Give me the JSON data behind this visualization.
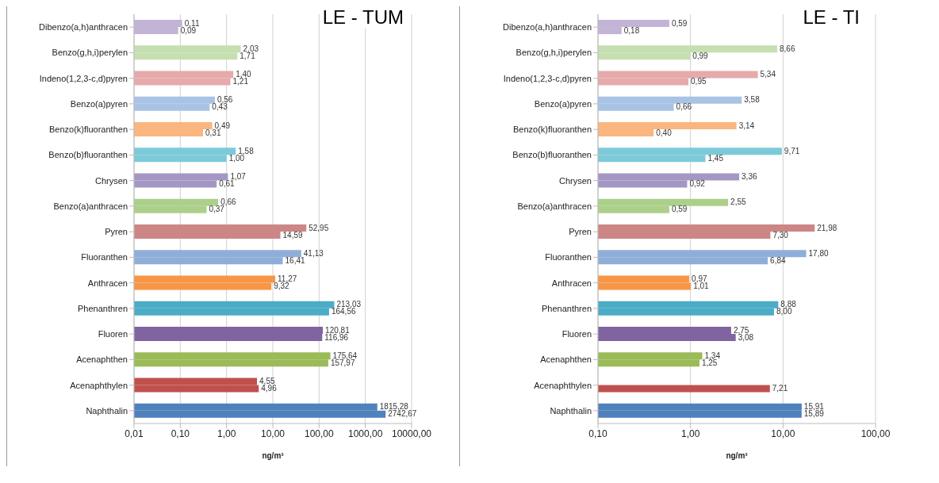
{
  "chart_data": [
    {
      "type": "bar",
      "orientation": "horizontal",
      "title": "LE - TUM",
      "xlabel": "ng/m³",
      "log": "x",
      "grid": "x",
      "legend": false,
      "categories": [
        "Dibenzo(a,h)anthracen",
        "Benzo(g,h,i)perylen",
        "Indeno(1,2,3-c,d)pyren",
        "Benzo(a)pyren",
        "Benzo(k)fluoranthen",
        "Benzo(b)fluoranthen",
        "Chrysen",
        "Benzo(a)anthracen",
        "Pyren",
        "Fluoranthen",
        "Anthracen",
        "Phenanthren",
        "Fluoren",
        "Acenaphthen",
        "Acenaphthylen",
        "Naphthalin"
      ],
      "xlim": [
        0.01,
        10000
      ],
      "xticks": [
        {
          "value": 0.01,
          "label": "0,01"
        },
        {
          "value": 0.1,
          "label": "0,10"
        },
        {
          "value": 1,
          "label": "1,00"
        },
        {
          "value": 10,
          "label": "10,00"
        },
        {
          "value": 100,
          "label": "100,00"
        },
        {
          "value": 1000,
          "label": "1000,00"
        },
        {
          "value": 10000,
          "label": "10000,00"
        }
      ],
      "series": [
        {
          "colors": [
            "#c3b3d6",
            "#c6dfb0",
            "#e6aaaa",
            "#a9c3e4",
            "#fbb57e",
            "#7ccad9",
            "#a597c4",
            "#acd08a",
            "#cd8686",
            "#8eaed8",
            "#f79646",
            "#4bacc6",
            "#8064a2",
            "#9bbb59",
            "#c0504d",
            "#4f81bd"
          ],
          "values": [
            0.11,
            2.03,
            1.4,
            0.56,
            0.49,
            1.58,
            1.07,
            0.66,
            52.95,
            41.13,
            11.27,
            213.03,
            120.81,
            175.64,
            4.55,
            1815.28
          ],
          "value_labels": [
            "0,11",
            "2,03",
            "1,40",
            "0,56",
            "0,49",
            "1,58",
            "1,07",
            "0,66",
            "52,95",
            "41,13",
            "11,27",
            "213,03",
            "120,81",
            "175,64",
            "4,55",
            "1815,28"
          ]
        },
        {
          "colors": [
            "#c3b3d6",
            "#c6dfb0",
            "#e6aaaa",
            "#a9c3e4",
            "#fbb57e",
            "#7ccad9",
            "#a597c4",
            "#acd08a",
            "#cd8686",
            "#8eaed8",
            "#f79646",
            "#4bacc6",
            "#8064a2",
            "#9bbb59",
            "#c0504d",
            "#4f81bd"
          ],
          "values": [
            0.09,
            1.71,
            1.21,
            0.43,
            0.31,
            1.0,
            0.61,
            0.37,
            14.59,
            16.41,
            9.32,
            164.56,
            116.96,
            157.97,
            4.96,
            2742.67
          ],
          "value_labels": [
            "0,09",
            "1,71",
            "1,21",
            "0,43",
            "0,31",
            "1,00",
            "0,61",
            "0,37",
            "14,59",
            "16,41",
            "9,32",
            "164,56",
            "116,96",
            "157,97",
            "4,96",
            "2742,67"
          ]
        }
      ]
    },
    {
      "type": "bar",
      "orientation": "horizontal",
      "title": "LE - TI",
      "xlabel": "ng/m³",
      "log": "x",
      "grid": "x",
      "legend": false,
      "categories": [
        "Dibenzo(a,h)anthracen",
        "Benzo(g,h,i)perylen",
        "Indeno(1,2,3-c,d)pyren",
        "Benzo(a)pyren",
        "Benzo(k)fluoranthen",
        "Benzo(b)fluoranthen",
        "Chrysen",
        "Benzo(a)anthracen",
        "Pyren",
        "Fluoranthen",
        "Anthracen",
        "Phenanthren",
        "Fluoren",
        "Acenaphthen",
        "Acenaphthylen",
        "Naphthalin"
      ],
      "xlim": [
        0.1,
        100
      ],
      "xticks": [
        {
          "value": 0.1,
          "label": "0,10"
        },
        {
          "value": 1,
          "label": "1,00"
        },
        {
          "value": 10,
          "label": "10,00"
        },
        {
          "value": 100,
          "label": "100,00"
        }
      ],
      "series": [
        {
          "colors": [
            "#c3b3d6",
            "#c6dfb0",
            "#e6aaaa",
            "#a9c3e4",
            "#fbb57e",
            "#7ccad9",
            "#a597c4",
            "#acd08a",
            "#cd8686",
            "#8eaed8",
            "#f79646",
            "#4bacc6",
            "#8064a2",
            "#9bbb59",
            "#c0504d",
            "#4f81bd"
          ],
          "values": [
            0.59,
            8.66,
            5.34,
            3.58,
            3.14,
            9.71,
            3.36,
            2.55,
            21.98,
            17.8,
            0.97,
            8.88,
            2.75,
            1.34,
            null,
            15.91
          ],
          "value_labels": [
            "0,59",
            "8,66",
            "5,34",
            "3,58",
            "3,14",
            "9,71",
            "3,36",
            "2,55",
            "21,98",
            "17,80",
            "0,97",
            "8,88",
            "2,75",
            "1,34",
            null,
            "15,91"
          ]
        },
        {
          "colors": [
            "#c3b3d6",
            "#c6dfb0",
            "#e6aaaa",
            "#a9c3e4",
            "#fbb57e",
            "#7ccad9",
            "#a597c4",
            "#acd08a",
            "#cd8686",
            "#8eaed8",
            "#f79646",
            "#4bacc6",
            "#8064a2",
            "#9bbb59",
            "#c0504d",
            "#4f81bd"
          ],
          "values": [
            0.18,
            0.99,
            0.95,
            0.66,
            0.4,
            1.45,
            0.92,
            0.59,
            7.3,
            6.84,
            1.01,
            8.0,
            3.08,
            1.25,
            7.21,
            15.89
          ],
          "value_labels": [
            "0,18",
            "0,99",
            "0,95",
            "0,66",
            "0,40",
            "1,45",
            "0,92",
            "0,59",
            "7,30",
            "6,84",
            "1,01",
            "8,00",
            "3,08",
            "1,25",
            "7,21",
            "15,89"
          ]
        }
      ]
    }
  ]
}
